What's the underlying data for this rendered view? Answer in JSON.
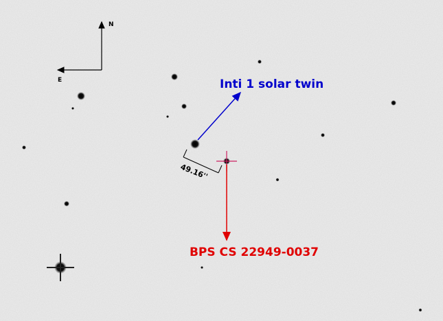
{
  "compass": {
    "north": "N",
    "east": "E"
  },
  "labels": {
    "target_1": "Inti 1 solar twin",
    "separation": "49.16''",
    "target_2": "BPS CS 22949-0037"
  }
}
